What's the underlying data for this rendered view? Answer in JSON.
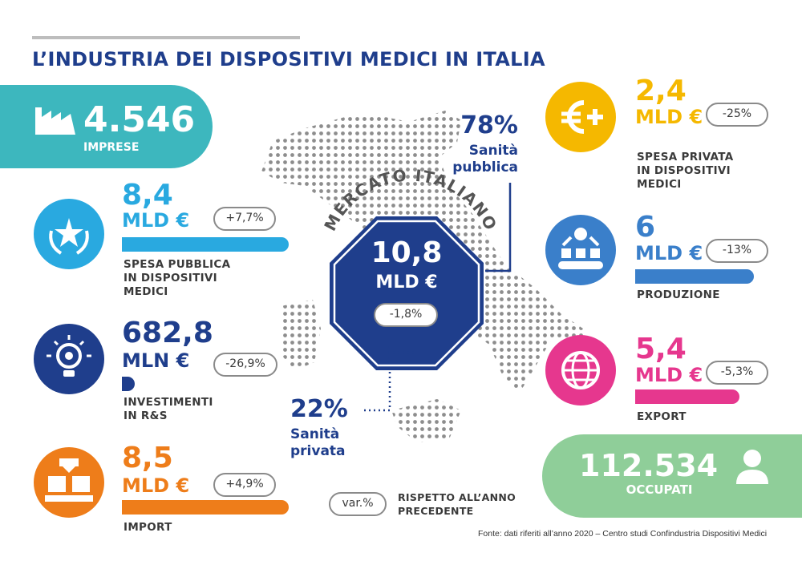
{
  "title": "L’INDUSTRIA DEI DISPOSITIVI MEDICI IN ITALIA",
  "colors": {
    "navy": "#1f3e8c",
    "teal": "#3db7be",
    "cyan": "#29a9e0",
    "orange": "#ee7d1a",
    "yellow": "#f5b800",
    "blue": "#3a7fca",
    "pink": "#e6378e",
    "green": "#8fce99",
    "text": "#3a3a3a"
  },
  "imprese": {
    "value": "4.546",
    "label": "IMPRESE",
    "icon": "factory-icon"
  },
  "spesa_pubblica": {
    "value": "8,4",
    "unit": "MLD €",
    "change": "+7,7%",
    "label_lines": [
      "SPESA PUBBLICA",
      "IN DISPOSITIVI",
      "MEDICI"
    ],
    "icon": "laurel-star-icon",
    "bar_fraction": 1.0
  },
  "investimenti": {
    "value": "682,8",
    "unit": "MLN €",
    "change": "-26,9%",
    "label_lines": [
      "INVESTIMENTI",
      "IN R&S"
    ],
    "icon": "lightbulb-gear-icon",
    "bar_fraction": 0.08
  },
  "import": {
    "value": "8,5",
    "unit": "MLD €",
    "change": "+4,9%",
    "label_lines": [
      "IMPORT"
    ],
    "icon": "boxes-download-icon",
    "bar_fraction": 1.0
  },
  "mercato": {
    "arc_label": "MERCATO ITALIANO",
    "value": "10,8",
    "unit": "MLD €",
    "change": "-1,8%",
    "pubblica": {
      "percent": "78%",
      "label_lines": [
        "Sanità",
        "pubblica"
      ]
    },
    "privata": {
      "percent": "22%",
      "label_lines": [
        "Sanità",
        "privata"
      ]
    }
  },
  "spesa_privata": {
    "value": "2,4",
    "unit": "MLD €",
    "change": "-25%",
    "label_lines": [
      "SPESA PRIVATA",
      "IN DISPOSITIVI",
      "MEDICI"
    ],
    "icon": "euro-plus-icon"
  },
  "produzione": {
    "value": "6",
    "unit": "MLD €",
    "change": "-13%",
    "label_lines": [
      "PRODUZIONE"
    ],
    "icon": "production-line-icon",
    "bar_fraction": 0.75
  },
  "export": {
    "value": "5,4",
    "unit": "MLD €",
    "change": "-5,3%",
    "label_lines": [
      "EXPORT"
    ],
    "icon": "globe-icon",
    "bar_fraction": 0.65
  },
  "occupati": {
    "value": "112.534",
    "label": "OCCUPATI",
    "icon": "person-icon"
  },
  "legend": {
    "pill": "var.%",
    "text_lines": [
      "RISPETTO ALL’ANNO",
      "PRECEDENTE"
    ]
  },
  "source": "Fonte: dati riferiti all’anno 2020 – Centro studi Confindustria Dispositivi Medici"
}
